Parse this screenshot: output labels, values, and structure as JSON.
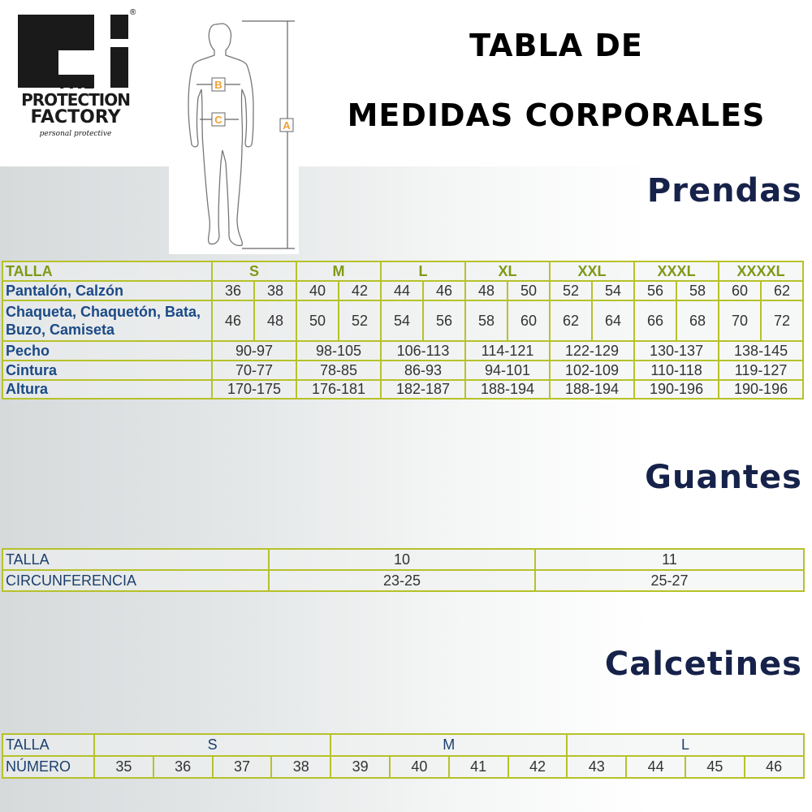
{
  "logo": {
    "line1": "THE",
    "line2": "PROTECTION",
    "line3": "FACTORY",
    "tagline": "personal protective",
    "registered": "®"
  },
  "figure": {
    "labels": [
      "A",
      "B",
      "C"
    ],
    "accent": "#f0a030"
  },
  "title": {
    "line1": "TABLA DE",
    "line2": "MEDIDAS CORPORALES"
  },
  "prendas": {
    "heading": "Prendas",
    "header_label": "TALLA",
    "sizes": [
      "S",
      "M",
      "L",
      "XL",
      "XXL",
      "XXXL",
      "XXXXL"
    ],
    "rows": [
      {
        "label": "Pantalón, Calzón",
        "values": [
          "36",
          "38",
          "40",
          "42",
          "44",
          "46",
          "48",
          "50",
          "52",
          "54",
          "56",
          "58",
          "60",
          "62"
        ]
      },
      {
        "label": "Chaqueta, Chaquetón, Bata, Buzo, Camiseta",
        "values": [
          "46",
          "48",
          "50",
          "52",
          "54",
          "56",
          "58",
          "60",
          "62",
          "64",
          "66",
          "68",
          "70",
          "72"
        ]
      },
      {
        "label": "Pecho",
        "values": [
          "90-97",
          "98-105",
          "106-113",
          "114-121",
          "122-129",
          "130-137",
          "138-145"
        ]
      },
      {
        "label": "Cintura",
        "values": [
          "70-77",
          "78-85",
          "86-93",
          "94-101",
          "102-109",
          "110-118",
          "119-127"
        ]
      },
      {
        "label": "Altura",
        "values": [
          "170-175",
          "176-181",
          "182-187",
          "188-194",
          "188-194",
          "190-196",
          "190-196"
        ]
      }
    ]
  },
  "guantes": {
    "heading": "Guantes",
    "rows": [
      {
        "label": "TALLA",
        "values": [
          "10",
          "11"
        ]
      },
      {
        "label": "CIRCUNFERENCIA",
        "values": [
          "23-25",
          "25-27"
        ]
      }
    ]
  },
  "calcetines": {
    "heading": "Calcetines",
    "header_label": "TALLA",
    "sizes": [
      "S",
      "M",
      "L"
    ],
    "number_label": "NÚMERO",
    "numbers": [
      "35",
      "36",
      "37",
      "38",
      "39",
      "40",
      "41",
      "42",
      "43",
      "44",
      "45",
      "46"
    ]
  },
  "colors": {
    "border": "#b6c22a",
    "label": "#1b4a86",
    "header": "#7f9a16",
    "heading": "#16224a"
  }
}
